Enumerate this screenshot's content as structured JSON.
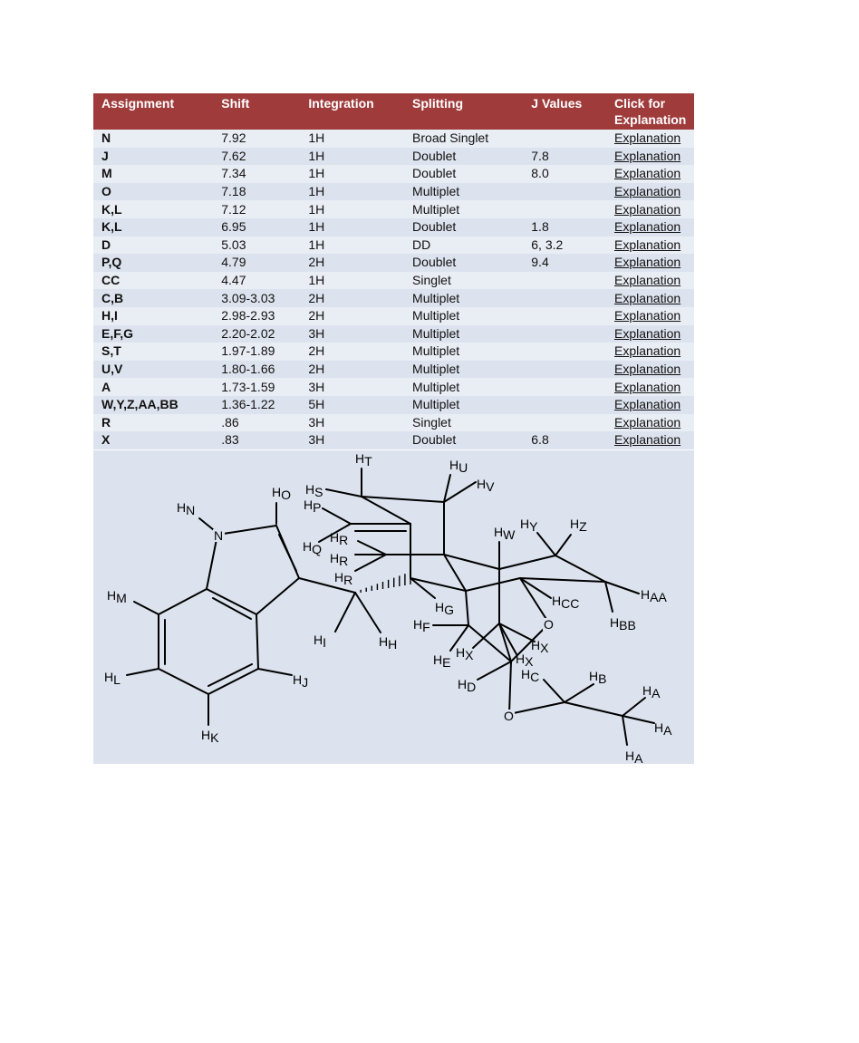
{
  "table": {
    "headers": [
      "Assignment",
      "Shift",
      "Integration",
      "Splitting",
      "J Values",
      "Click for Explanation"
    ],
    "rows": [
      [
        "N",
        "7.92",
        "1H",
        "Broad Singlet",
        "",
        "Explanation"
      ],
      [
        "J",
        "7.62",
        "1H",
        "Doublet",
        "7.8",
        "Explanation"
      ],
      [
        "M",
        "7.34",
        "1H",
        "Doublet",
        "8.0",
        "Explanation"
      ],
      [
        "O",
        "7.18",
        "1H",
        "Multiplet",
        "",
        "Explanation"
      ],
      [
        "K,L",
        "7.12",
        "1H",
        "Multiplet",
        "",
        "Explanation"
      ],
      [
        "K,L",
        "6.95",
        "1H",
        "Doublet",
        "1.8",
        "Explanation"
      ],
      [
        "D",
        "5.03",
        "1H",
        "DD",
        "6, 3.2",
        "Explanation"
      ],
      [
        "P,Q",
        "4.79",
        "2H",
        "Doublet",
        "9.4",
        "Explanation"
      ],
      [
        "CC",
        "4.47",
        "1H",
        "Singlet",
        "",
        "Explanation"
      ],
      [
        "C,B",
        "3.09-3.03",
        "2H",
        "Multiplet",
        "",
        "Explanation"
      ],
      [
        "H,I",
        "2.98-2.93",
        "2H",
        "Multiplet",
        "",
        "Explanation"
      ],
      [
        "E,F,G",
        "2.20-2.02",
        "3H",
        "Multiplet",
        "",
        "Explanation"
      ],
      [
        "S,T",
        "1.97-1.89",
        "2H",
        "Multiplet",
        "",
        "Explanation"
      ],
      [
        "U,V",
        "1.80-1.66",
        "2H",
        "Multiplet",
        "",
        "Explanation"
      ],
      [
        "A",
        "1.73-1.59",
        "3H",
        "Multiplet",
        "",
        "Explanation"
      ],
      [
        "W,Y,Z,AA,BB",
        "1.36-1.22",
        "5H",
        "Multiplet",
        "",
        "Explanation"
      ],
      [
        "R",
        ".86",
        "3H",
        "Singlet",
        "",
        "Explanation"
      ],
      [
        "X",
        ".83",
        "3H",
        "Doublet",
        "6.8",
        "Explanation"
      ]
    ]
  },
  "structure": {
    "atoms": {
      "N": "N",
      "O1": "O",
      "O2": "O"
    },
    "h_labels": [
      "N",
      "O",
      "M",
      "L",
      "K",
      "J",
      "I",
      "H",
      "T",
      "S",
      "P",
      "Q",
      "R",
      "R",
      "R",
      "U",
      "V",
      "G",
      "F",
      "E",
      "W",
      "Y",
      "Z",
      "CC",
      "AA",
      "BB",
      "X",
      "X",
      "X",
      "D",
      "C",
      "B",
      "A",
      "A",
      "A"
    ]
  },
  "colors": {
    "header_bg": "#a03b3c",
    "row_light": "#e9edf4",
    "row_dark": "#dde3ee",
    "structure_bg": "#dce3ee"
  }
}
